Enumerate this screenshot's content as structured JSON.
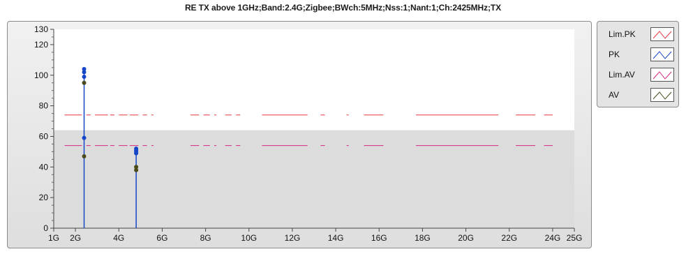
{
  "chart_data": {
    "type": "line",
    "title": "RE TX above 1GHz;Band:2.4G;Zigbee;BWch:5MHz;Nss:1;Nant:1;Ch:2425MHz;TX",
    "xlabel": "",
    "ylabel": "",
    "xlim": [
      1,
      25
    ],
    "ylim": [
      0,
      130
    ],
    "x_ticks": [
      {
        "v": 1,
        "label": "1G"
      },
      {
        "v": 2,
        "label": "2G"
      },
      {
        "v": 4,
        "label": "4G"
      },
      {
        "v": 6,
        "label": "6G"
      },
      {
        "v": 8,
        "label": "8G"
      },
      {
        "v": 10,
        "label": "10G"
      },
      {
        "v": 12,
        "label": "12G"
      },
      {
        "v": 14,
        "label": "14G"
      },
      {
        "v": 16,
        "label": "16G"
      },
      {
        "v": 18,
        "label": "18G"
      },
      {
        "v": 20,
        "label": "20G"
      },
      {
        "v": 22,
        "label": "22G"
      },
      {
        "v": 24,
        "label": "24G"
      },
      {
        "v": 25,
        "label": "25G"
      }
    ],
    "y_ticks": [
      0,
      20,
      40,
      60,
      80,
      100,
      120,
      130
    ],
    "grid": false,
    "legend_position": "right",
    "series": [
      {
        "name": "Lim.PK",
        "color": "#e8393f",
        "kind": "limit",
        "value": 74,
        "segments": [
          [
            1.5,
            2.3
          ],
          [
            2.5,
            2.7
          ],
          [
            2.9,
            3.5
          ],
          [
            3.6,
            3.8
          ],
          [
            4.0,
            4.4
          ],
          [
            4.5,
            4.9
          ],
          [
            5.1,
            5.3
          ],
          [
            5.5,
            5.6
          ],
          [
            7.3,
            7.7
          ],
          [
            7.9,
            8.2
          ],
          [
            8.4,
            8.5
          ],
          [
            8.9,
            9.2
          ],
          [
            9.4,
            9.6
          ],
          [
            10.6,
            12.7
          ],
          [
            13.3,
            13.5
          ],
          [
            14.5,
            14.6
          ],
          [
            15.3,
            16.2
          ],
          [
            17.7,
            21.5
          ],
          [
            22.3,
            23.2
          ],
          [
            23.6,
            24.0
          ]
        ]
      },
      {
        "name": "PK",
        "color": "#1646c8",
        "kind": "peaks",
        "points": [
          [
            2.4,
            104
          ],
          [
            2.4,
            102
          ],
          [
            2.4,
            99
          ],
          [
            2.4,
            59
          ],
          [
            4.8,
            52
          ],
          [
            4.8,
            51
          ],
          [
            4.8,
            50
          ],
          [
            4.8,
            49
          ]
        ]
      },
      {
        "name": "Lim.AV",
        "color": "#d4287f",
        "kind": "limit",
        "value": 54,
        "segments": [
          [
            1.5,
            2.3
          ],
          [
            2.5,
            2.7
          ],
          [
            2.9,
            3.5
          ],
          [
            3.6,
            3.8
          ],
          [
            4.0,
            4.4
          ],
          [
            4.5,
            4.9
          ],
          [
            5.1,
            5.3
          ],
          [
            5.5,
            5.6
          ],
          [
            7.3,
            7.7
          ],
          [
            7.9,
            8.2
          ],
          [
            8.4,
            8.5
          ],
          [
            8.9,
            9.2
          ],
          [
            9.4,
            9.6
          ],
          [
            10.6,
            12.7
          ],
          [
            13.3,
            13.5
          ],
          [
            14.5,
            14.6
          ],
          [
            15.3,
            16.2
          ],
          [
            17.7,
            21.5
          ],
          [
            22.3,
            23.2
          ],
          [
            23.6,
            24.0
          ]
        ]
      },
      {
        "name": "AV",
        "color": "#4a4a1a",
        "kind": "peaks",
        "points": [
          [
            2.4,
            95
          ],
          [
            2.4,
            47
          ],
          [
            4.8,
            40
          ],
          [
            4.8,
            38
          ]
        ]
      }
    ]
  }
}
